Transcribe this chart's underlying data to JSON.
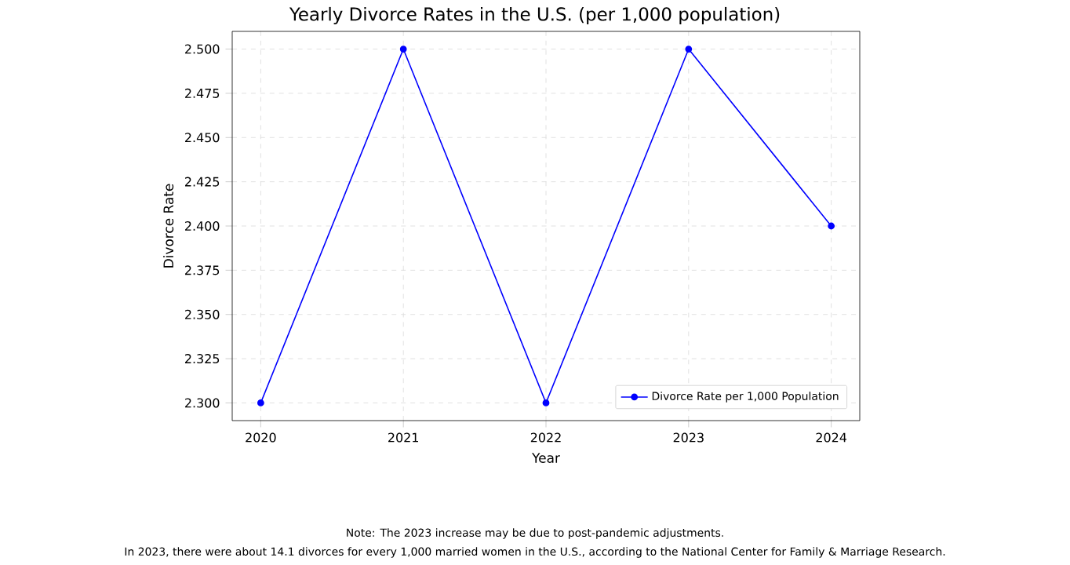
{
  "chart_data": {
    "type": "line",
    "title": "Yearly Divorce Rates in the U.S. (per 1,000 population)",
    "xlabel": "Year",
    "ylabel": "Divorce Rate",
    "x": [
      2020,
      2021,
      2022,
      2023,
      2024
    ],
    "series": [
      {
        "name": "Divorce Rate per 1,000 Population",
        "color": "#0000ff",
        "values": [
          2.3,
          2.5,
          2.3,
          2.5,
          2.4
        ]
      }
    ],
    "xlim": [
      2019.8,
      2024.2
    ],
    "ylim": [
      2.29,
      2.51
    ],
    "xticks": [
      2020,
      2021,
      2022,
      2023,
      2024
    ],
    "yticks": [
      {
        "value": 2.3,
        "label": "2.300"
      },
      {
        "value": 2.325,
        "label": "2.325"
      },
      {
        "value": 2.35,
        "label": "2.350"
      },
      {
        "value": 2.375,
        "label": "2.375"
      },
      {
        "value": 2.4,
        "label": "2.400"
      },
      {
        "value": 2.425,
        "label": "2.425"
      },
      {
        "value": 2.45,
        "label": "2.450"
      },
      {
        "value": 2.475,
        "label": "2.475"
      },
      {
        "value": 2.5,
        "label": "2.500"
      }
    ],
    "grid": true,
    "legend": "bottom right",
    "marker": "circle",
    "line_style": "solid",
    "annotations": [
      "Note: The 2023 increase may be due to post-pandemic adjustments.",
      "In 2023, there were about 14.1 divorces for every 1,000 married women in the U.S., according to the National Center for Family & Marriage Research."
    ]
  }
}
